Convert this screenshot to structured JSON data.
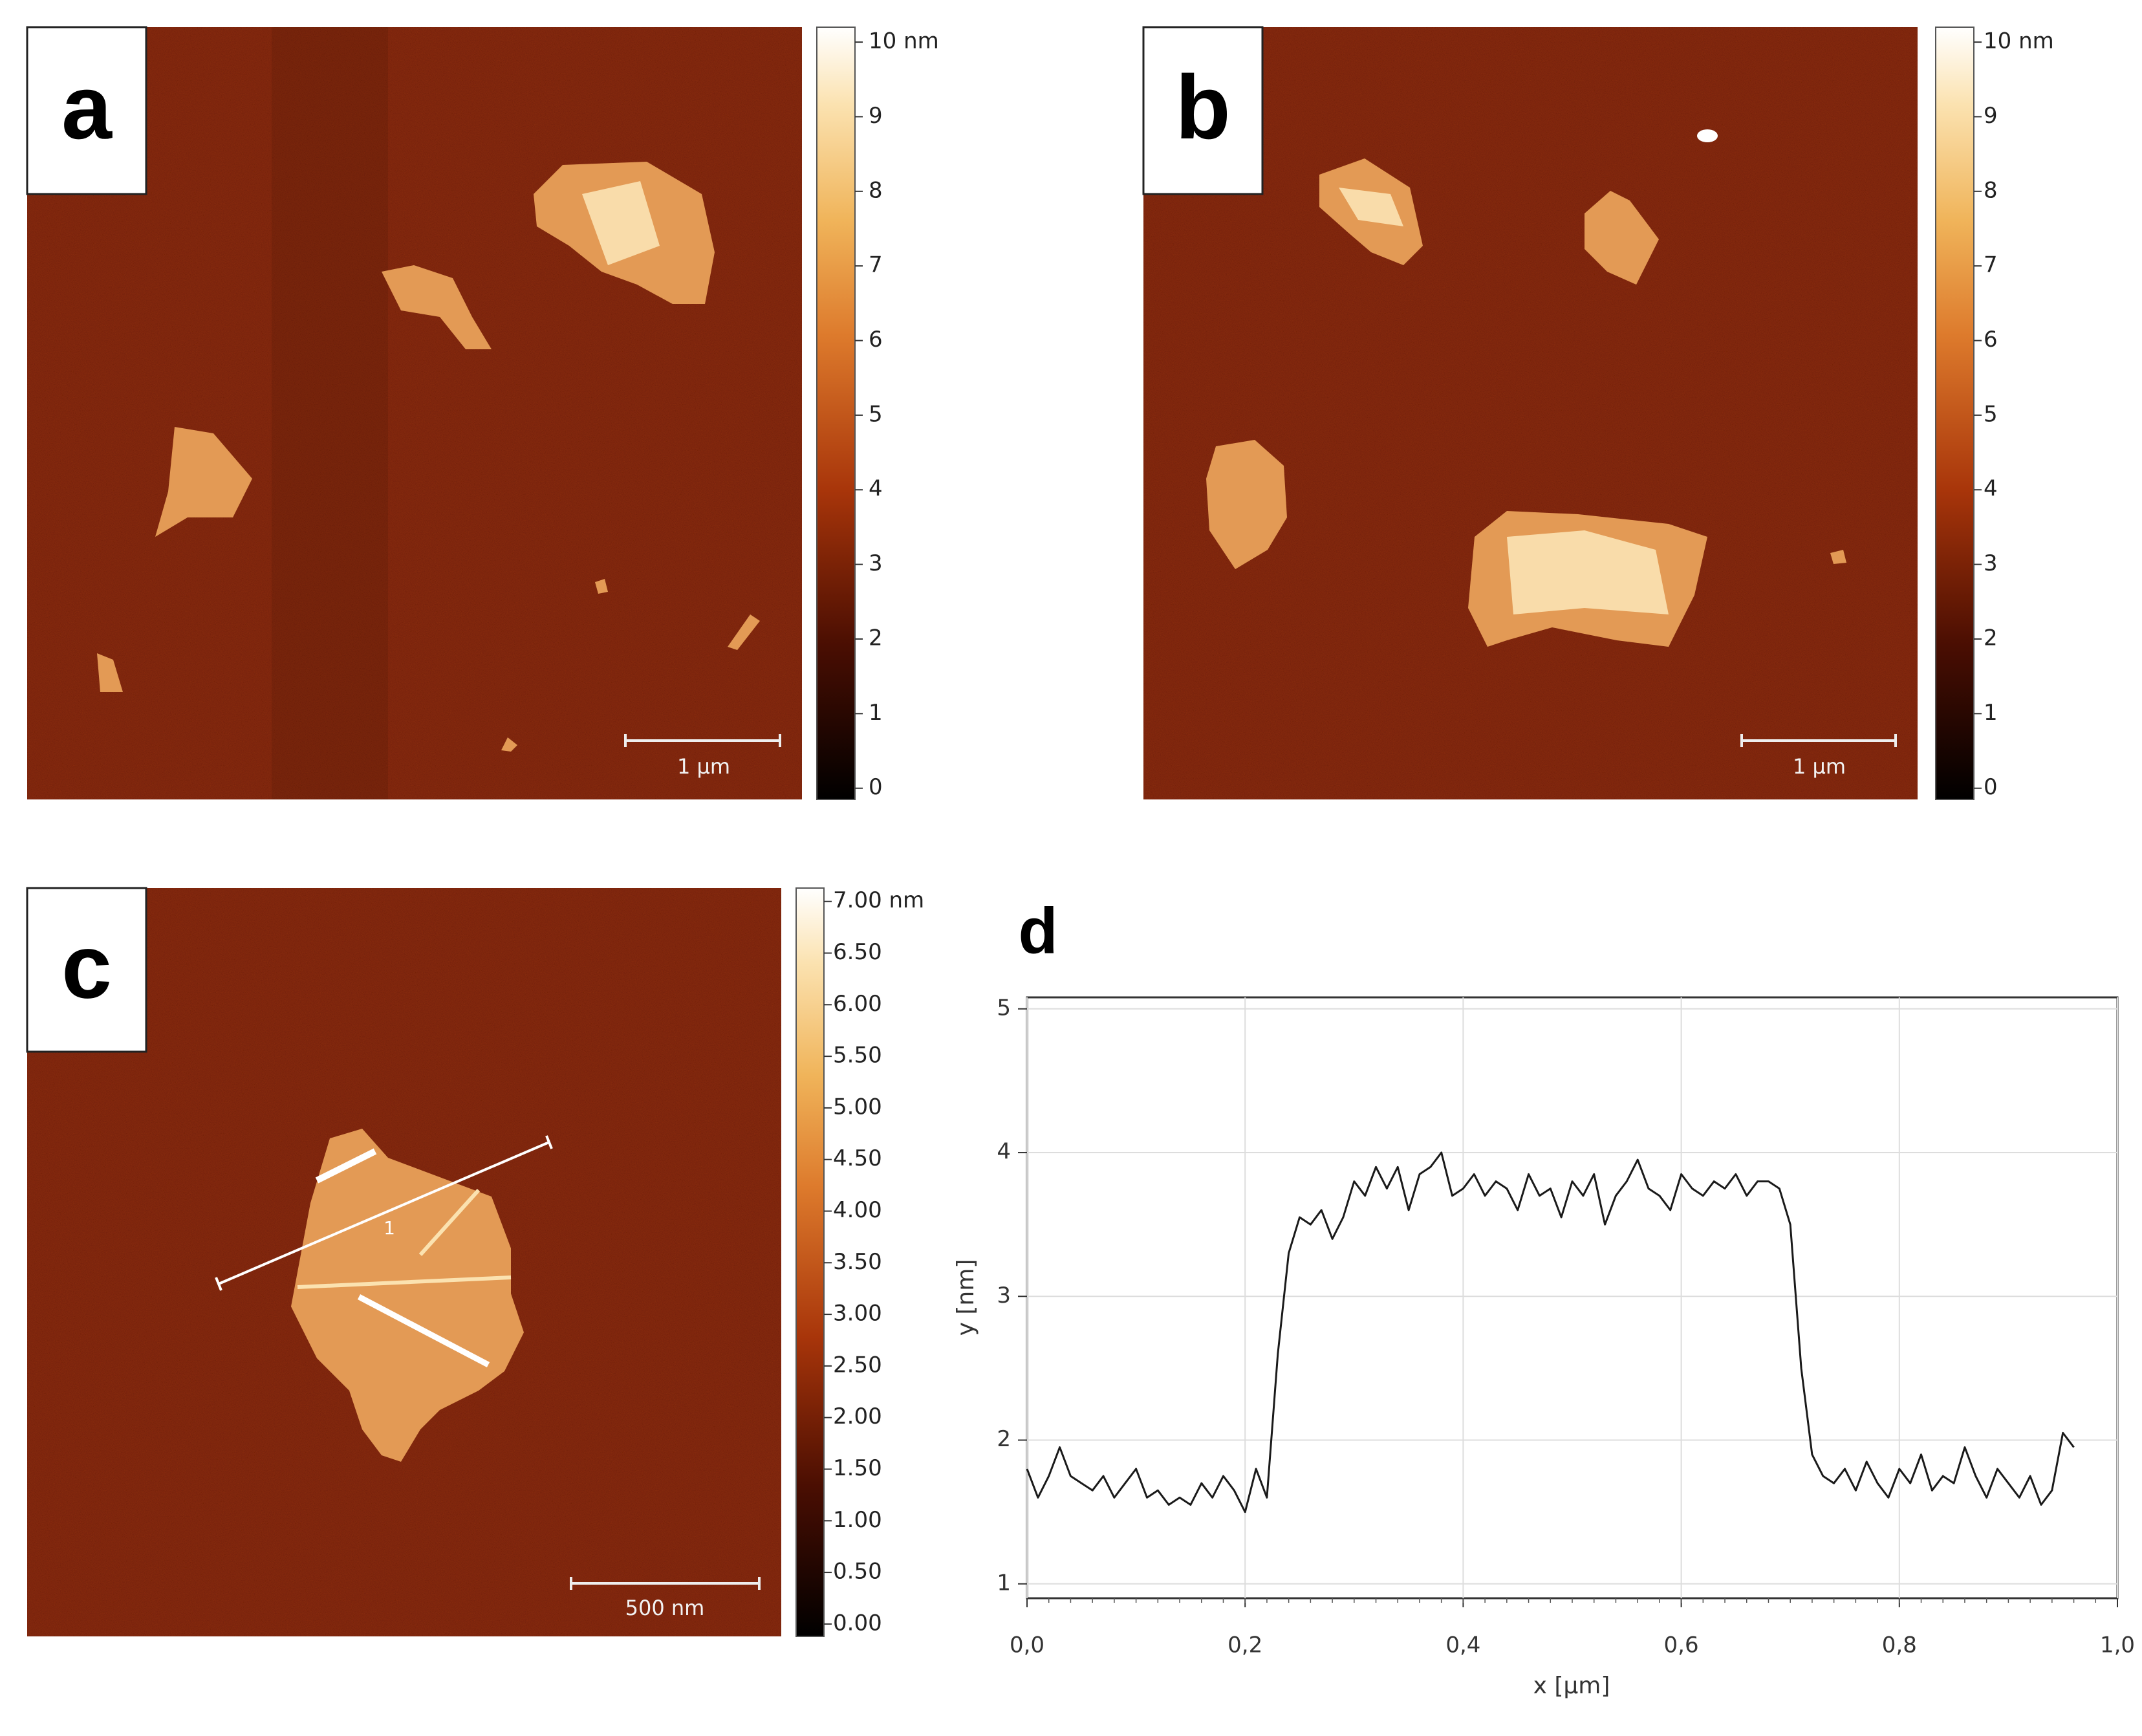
{
  "panels": [
    {
      "label": "a",
      "scale_bar": "1 µm",
      "colorbar": {
        "lim": [
          -0.15,
          10.2
        ],
        "ticks": [
          0,
          1,
          2,
          3,
          4,
          5,
          6,
          7,
          8,
          9,
          {
            "value": 10,
            "label": "10 nm"
          }
        ]
      }
    },
    {
      "label": "b",
      "scale_bar": "1 µm",
      "colorbar": {
        "lim": [
          -0.15,
          10.2
        ],
        "ticks": [
          0,
          1,
          2,
          3,
          4,
          5,
          6,
          7,
          8,
          9,
          {
            "value": 10,
            "label": "10 nm"
          }
        ]
      }
    },
    {
      "label": "c",
      "scale_bar": "500 nm",
      "profile_label": "1",
      "colorbar": {
        "lim": [
          -0.12,
          7.13
        ],
        "ticks": [
          {
            "value": 0,
            "label": "0.00"
          },
          {
            "value": 0.5,
            "label": "0.50"
          },
          {
            "value": 1,
            "label": "1.00"
          },
          {
            "value": 1.5,
            "label": "1.50"
          },
          {
            "value": 2,
            "label": "2.00"
          },
          {
            "value": 2.5,
            "label": "2.50"
          },
          {
            "value": 3,
            "label": "3.00"
          },
          {
            "value": 3.5,
            "label": "3.50"
          },
          {
            "value": 4,
            "label": "4.00"
          },
          {
            "value": 4.5,
            "label": "4.50"
          },
          {
            "value": 5,
            "label": "5.00"
          },
          {
            "value": 5.5,
            "label": "5.50"
          },
          {
            "value": 6,
            "label": "6.00"
          },
          {
            "value": 6.5,
            "label": "6.50"
          },
          {
            "value": 7,
            "label": "7.00 nm"
          }
        ]
      }
    }
  ],
  "chart_data": {
    "type": "line",
    "label": "d",
    "x_label": "x [µm]",
    "y_label": "y [nm]",
    "color": "#1a1a1a",
    "grid": true,
    "xlim": [
      0,
      1
    ],
    "ylim": [
      0.9,
      5.08
    ],
    "xticks": [
      {
        "value": 0,
        "label": "0,0"
      },
      {
        "value": 0.2,
        "label": "0,2"
      },
      {
        "value": 0.4,
        "label": "0,4"
      },
      {
        "value": 0.6,
        "label": "0,6"
      },
      {
        "value": 0.8,
        "label": "0,8"
      },
      {
        "value": 1,
        "label": "1,0"
      }
    ],
    "yticks": [
      1,
      2,
      3,
      4,
      5
    ],
    "x": [
      0,
      0.01,
      0.02,
      0.03,
      0.04,
      0.05,
      0.06,
      0.07,
      0.08,
      0.09,
      0.1,
      0.11,
      0.12,
      0.13,
      0.14,
      0.15,
      0.16,
      0.17,
      0.18,
      0.19,
      0.2,
      0.21,
      0.22,
      0.23,
      0.24,
      0.25,
      0.26,
      0.27,
      0.28,
      0.29,
      0.3,
      0.31,
      0.32,
      0.33,
      0.34,
      0.35,
      0.36,
      0.37,
      0.38,
      0.39,
      0.4,
      0.41,
      0.42,
      0.43,
      0.44,
      0.45,
      0.46,
      0.47,
      0.48,
      0.49,
      0.5,
      0.51,
      0.52,
      0.53,
      0.54,
      0.55,
      0.56,
      0.57,
      0.58,
      0.59,
      0.6,
      0.61,
      0.62,
      0.63,
      0.64,
      0.65,
      0.66,
      0.67,
      0.68,
      0.69,
      0.7,
      0.71,
      0.72,
      0.73,
      0.74,
      0.75,
      0.76,
      0.77,
      0.78,
      0.79,
      0.8,
      0.81,
      0.82,
      0.83,
      0.84,
      0.85,
      0.86,
      0.87,
      0.88,
      0.89,
      0.9,
      0.91,
      0.92,
      0.93,
      0.94,
      0.95,
      0.96
    ],
    "values": [
      1.8,
      1.6,
      1.75,
      1.95,
      1.75,
      1.7,
      1.65,
      1.75,
      1.6,
      1.7,
      1.8,
      1.6,
      1.65,
      1.55,
      1.6,
      1.55,
      1.7,
      1.6,
      1.75,
      1.65,
      1.5,
      1.8,
      1.6,
      2.6,
      3.3,
      3.55,
      3.5,
      3.6,
      3.4,
      3.55,
      3.8,
      3.7,
      3.9,
      3.75,
      3.9,
      3.6,
      3.85,
      3.9,
      4.0,
      3.7,
      3.75,
      3.85,
      3.7,
      3.8,
      3.75,
      3.6,
      3.85,
      3.7,
      3.75,
      3.55,
      3.8,
      3.7,
      3.85,
      3.5,
      3.7,
      3.8,
      3.95,
      3.75,
      3.7,
      3.6,
      3.85,
      3.75,
      3.7,
      3.8,
      3.75,
      3.85,
      3.7,
      3.8,
      3.8,
      3.75,
      3.5,
      2.5,
      1.9,
      1.75,
      1.7,
      1.8,
      1.65,
      1.85,
      1.7,
      1.6,
      1.8,
      1.7,
      1.9,
      1.65,
      1.75,
      1.7,
      1.95,
      1.75,
      1.6,
      1.8,
      1.7,
      1.6,
      1.75,
      1.55,
      1.65,
      2.05,
      1.95
    ]
  }
}
